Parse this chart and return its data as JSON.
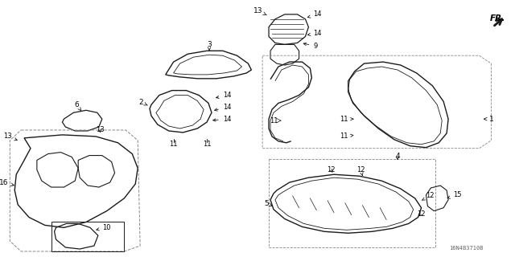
{
  "bg_color": "#ffffff",
  "diagram_code": "16N4B3710B",
  "line_color": "#1a1a1a",
  "text_color": "#000000",
  "gray_color": "#888888"
}
